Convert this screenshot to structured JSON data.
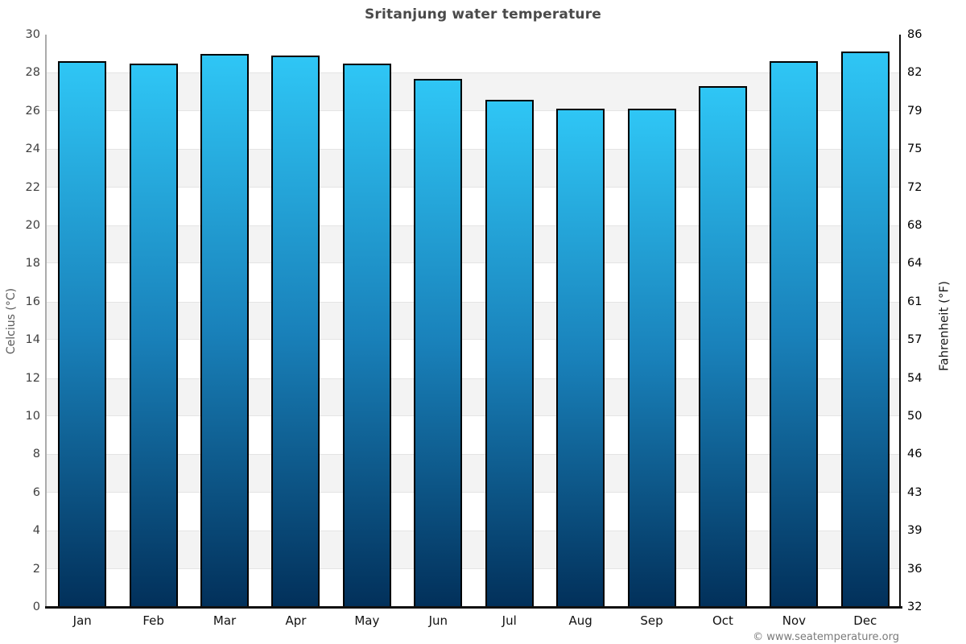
{
  "title": "Sritanjung water temperature",
  "axes": {
    "left": {
      "title": "Celcius (°C)"
    },
    "right": {
      "title": "Fahrenheit (°F)"
    }
  },
  "footer": {
    "text": "© www.seatemperature.org"
  },
  "chart_data": {
    "type": "bar",
    "title": "Sritanjung water temperature",
    "categories": [
      "Jan",
      "Feb",
      "Mar",
      "Apr",
      "May",
      "Jun",
      "Jul",
      "Aug",
      "Sep",
      "Oct",
      "Nov",
      "Dec"
    ],
    "values": [
      28.6,
      28.5,
      29.0,
      28.9,
      28.5,
      27.7,
      26.6,
      26.1,
      26.1,
      27.3,
      28.6,
      29.1
    ],
    "unit": "°C",
    "ylabel_left": "Celcius (°C)",
    "ylabel_right": "Fahrenheit (°F)",
    "ylim": [
      0,
      30
    ],
    "ytick_step": 2,
    "left_tick_labels": [
      "30",
      "28",
      "26",
      "24",
      "22",
      "20",
      "18",
      "16",
      "14",
      "12",
      "10",
      "8",
      "6",
      "4",
      "2",
      "0"
    ],
    "right_tick_labels": [
      "86",
      "82",
      "79",
      "75",
      "72",
      "68",
      "64",
      "61",
      "57",
      "54",
      "50",
      "46",
      "43",
      "39",
      "36",
      "32"
    ],
    "grid": "alternating-horizontal-bands",
    "legend": false,
    "colors": {
      "bar_top": "#2fc6f5",
      "bar_mid": "#1981ba",
      "bar_bottom": "#02305a",
      "bar_border": "#000000",
      "band_gray": "#f3f3f3"
    }
  }
}
